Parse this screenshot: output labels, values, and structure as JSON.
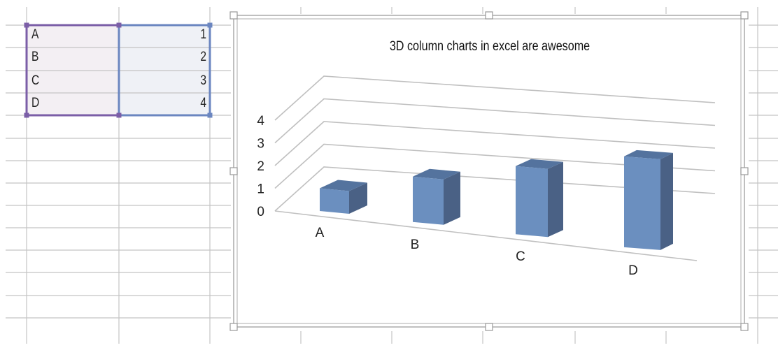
{
  "sheet": {
    "rows": [
      {
        "label": "A",
        "value": "1"
      },
      {
        "label": "B",
        "value": "2"
      },
      {
        "label": "C",
        "value": "3"
      },
      {
        "label": "D",
        "value": "4"
      }
    ],
    "label_range_color": "#7b5ea7",
    "value_range_color": "#6b86c0",
    "label_range_fill": "#f3eff3",
    "value_range_fill": "#eff1f6",
    "grid_color": "#c4c4c4"
  },
  "chart_data": {
    "type": "bar",
    "variant": "3d-column",
    "title": "3D column charts in excel are awesome",
    "categories": [
      "A",
      "B",
      "C",
      "D"
    ],
    "values": [
      1,
      2,
      3,
      4
    ],
    "ylim": [
      0,
      4
    ],
    "yticks": [
      "0",
      "1",
      "2",
      "3",
      "4"
    ],
    "grid": true,
    "legend": "none",
    "bar_color": "#6b8fbf",
    "bar_side_color": "#4a6185",
    "bar_top_color": "#54739e"
  }
}
